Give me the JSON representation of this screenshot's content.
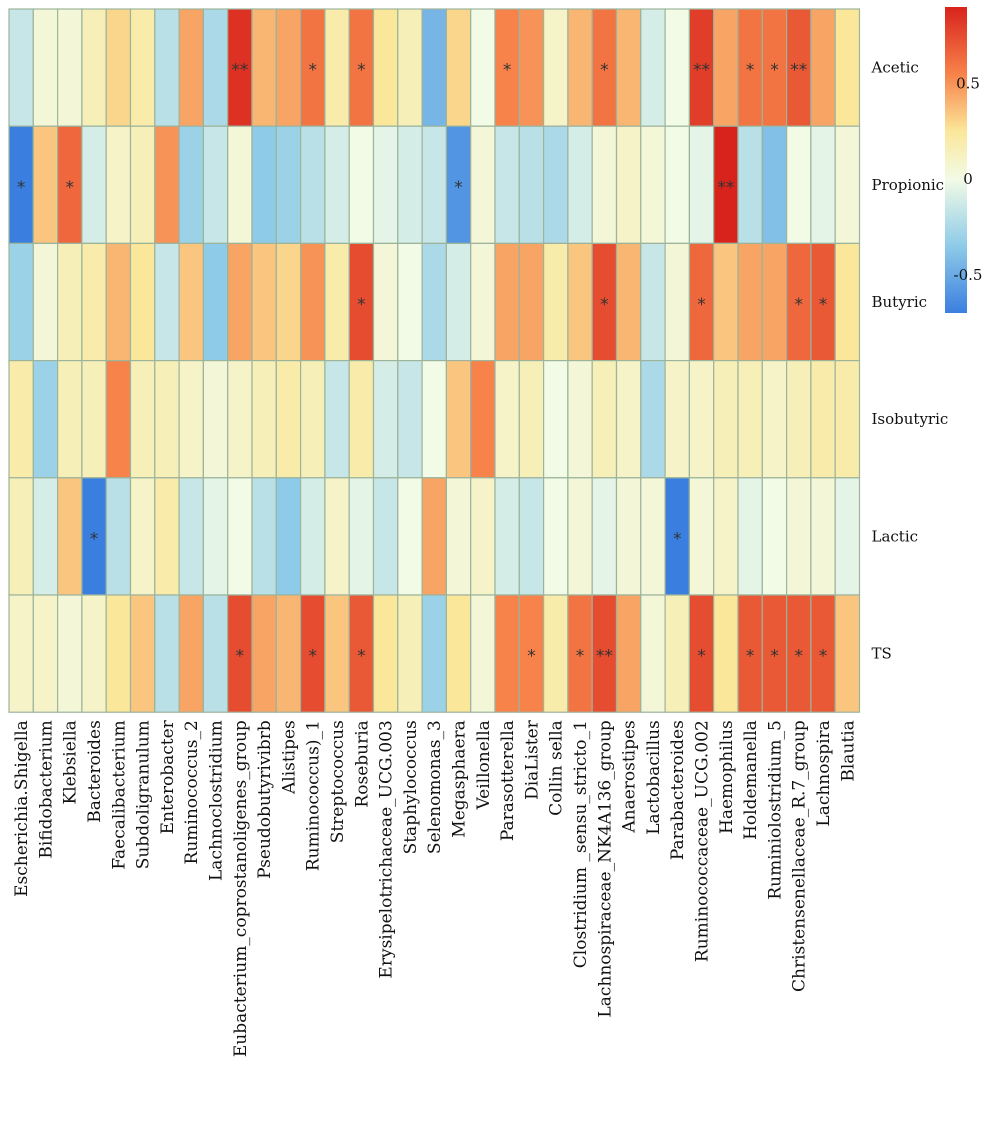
{
  "chart_data": {
    "type": "heatmap",
    "rows": [
      "Acetic",
      "Propionic",
      "Butyric",
      "Isobutyric",
      "Lactic",
      "TS"
    ],
    "columns": [
      "Escherichia.Shigella",
      "Bifidobacterium",
      "Klebsiella",
      "Bacteroides",
      "Faecalibacterium",
      "Subdoligranulum",
      "Enterobacter",
      "Ruminococcus_2",
      "Lachnoclostridium",
      "Eubacterium_coprostanoligenes_group",
      "Pseudobutyrivibrb",
      "Alistipes",
      "Ruminococcus)_1",
      "Streptococcus",
      "Roseburia",
      "Erysipelotrichaceae_UCG.003",
      "Staphylococcus",
      "Selenomonas_3",
      "Megasphaera",
      "Veillonella",
      "Parasotterella",
      "DiaLister",
      "Collin sella",
      "Clostridium _sensu_stricto_1",
      "Lachnospiraceae_NK4A136_group",
      "Anaerostipes",
      "Lactobacillus",
      "Parabacteroides",
      "Ruminococcaceae_UCG.002",
      "Haemophilus",
      "Holdemanella",
      "Ruminiolostridium_5",
      "Christensenellaceae_R.7_group",
      "Lachnospira",
      "Blautia"
    ],
    "values": [
      [
        -0.15,
        0.05,
        0.05,
        0.15,
        0.3,
        0.2,
        -0.2,
        0.45,
        -0.25,
        0.85,
        0.4,
        0.45,
        0.6,
        0.2,
        0.6,
        0.25,
        0.15,
        -0.45,
        0.3,
        0.0,
        0.55,
        0.5,
        0.1,
        0.4,
        0.6,
        0.4,
        -0.1,
        0.0,
        0.8,
        0.45,
        0.6,
        0.6,
        0.7,
        0.45,
        0.25
      ],
      [
        -0.7,
        0.35,
        0.65,
        -0.1,
        0.1,
        0.15,
        0.5,
        -0.3,
        -0.15,
        0.05,
        -0.35,
        -0.3,
        -0.2,
        -0.1,
        0.0,
        -0.05,
        -0.1,
        -0.15,
        -0.6,
        0.05,
        -0.15,
        -0.2,
        -0.25,
        -0.1,
        0.05,
        0.1,
        0.05,
        0.0,
        -0.05,
        0.9,
        -0.2,
        -0.4,
        0.0,
        -0.05,
        0.05
      ],
      [
        -0.3,
        0.05,
        0.15,
        0.2,
        0.4,
        0.25,
        -0.15,
        0.35,
        -0.35,
        0.45,
        0.35,
        0.3,
        0.5,
        0.2,
        0.75,
        0.05,
        0.0,
        -0.25,
        -0.1,
        0.05,
        0.45,
        0.45,
        0.2,
        0.35,
        0.75,
        0.4,
        -0.15,
        0.05,
        0.65,
        0.35,
        0.45,
        0.45,
        0.65,
        0.7,
        0.25
      ],
      [
        0.2,
        -0.3,
        0.15,
        0.15,
        0.55,
        0.15,
        0.15,
        0.1,
        0.05,
        0.1,
        0.15,
        0.2,
        0.15,
        -0.15,
        0.2,
        -0.1,
        -0.15,
        0.0,
        0.35,
        0.55,
        0.1,
        0.15,
        0.0,
        0.05,
        0.15,
        0.1,
        -0.25,
        0.1,
        0.1,
        0.15,
        0.15,
        0.1,
        0.15,
        0.2,
        0.2
      ],
      [
        0.15,
        -0.1,
        0.35,
        -0.75,
        -0.2,
        0.1,
        0.2,
        -0.15,
        -0.05,
        0.0,
        -0.2,
        -0.35,
        -0.1,
        0.1,
        -0.05,
        -0.15,
        0.0,
        0.45,
        0.05,
        0.1,
        -0.1,
        -0.15,
        0.0,
        0.05,
        -0.05,
        0.05,
        0.05,
        -0.75,
        0.05,
        0.1,
        -0.05,
        0.0,
        0.05,
        0.05,
        -0.05
      ],
      [
        0.1,
        0.1,
        0.05,
        0.1,
        0.25,
        0.35,
        -0.2,
        0.45,
        -0.2,
        0.75,
        0.45,
        0.4,
        0.75,
        0.35,
        0.7,
        0.25,
        0.15,
        -0.3,
        0.25,
        0.05,
        0.55,
        0.55,
        0.2,
        0.6,
        0.75,
        0.45,
        0.05,
        0.15,
        0.75,
        0.25,
        0.7,
        0.7,
        0.7,
        0.7,
        0.35
      ]
    ],
    "significance": [
      [
        "",
        "",
        "",
        "",
        "",
        "",
        "",
        "",
        "",
        "**",
        "",
        "",
        "*",
        "",
        "*",
        "",
        "",
        "",
        "",
        "",
        "*",
        "",
        "",
        "",
        "*",
        "",
        "",
        "",
        "**",
        "",
        "*",
        "*",
        "**",
        "",
        ""
      ],
      [
        "*",
        "",
        "*",
        "",
        "",
        "",
        "",
        "",
        "",
        "",
        "",
        "",
        "",
        "",
        "",
        "",
        "",
        "",
        "*",
        "",
        "",
        "",
        "",
        "",
        "",
        "",
        "",
        "",
        "",
        "**",
        "",
        "",
        "",
        "",
        ""
      ],
      [
        "",
        "",
        "",
        "",
        "",
        "",
        "",
        "",
        "",
        "",
        "",
        "",
        "",
        "",
        "*",
        "",
        "",
        "",
        "",
        "",
        "",
        "",
        "",
        "",
        "*",
        "",
        "",
        "",
        "*",
        "",
        "",
        "",
        "*",
        "*",
        ""
      ],
      [
        "",
        "",
        "",
        "",
        "",
        "",
        "",
        "",
        "",
        "",
        "",
        "",
        "",
        "",
        "",
        "",
        "",
        "",
        "",
        "",
        "",
        "",
        "",
        "",
        "",
        "",
        "",
        "",
        "",
        "",
        "",
        "",
        "",
        "",
        ""
      ],
      [
        "",
        "",
        "",
        "*",
        "",
        "",
        "",
        "",
        "",
        "",
        "",
        "",
        "",
        "",
        "",
        "",
        "",
        "",
        "",
        "",
        "",
        "",
        "",
        "",
        "",
        "",
        "",
        "*",
        "",
        "",
        "",
        "",
        "",
        "",
        ""
      ],
      [
        "",
        "",
        "",
        "",
        "",
        "",
        "",
        "",
        "",
        "*",
        "",
        "",
        "*",
        "",
        "*",
        "",
        "",
        "",
        "",
        "",
        "",
        "*",
        "",
        "*",
        "**",
        "",
        "",
        "",
        "*",
        "",
        "*",
        "*",
        "*",
        "*",
        ""
      ]
    ],
    "color_scale": {
      "min": -0.7,
      "max": 0.9,
      "stops": [
        {
          "value": -0.7,
          "color": "#3a7fe0"
        },
        {
          "value": -0.35,
          "color": "#8ecbe8"
        },
        {
          "value": 0.0,
          "color": "#f2fbe6"
        },
        {
          "value": 0.25,
          "color": "#fbe79a"
        },
        {
          "value": 0.55,
          "color": "#f7824a"
        },
        {
          "value": 0.9,
          "color": "#d8231c"
        }
      ],
      "ticks": [
        0.5,
        0,
        -0.5
      ],
      "tick_labels": [
        "0.5",
        "0",
        "-0.5"
      ]
    },
    "grid_color": "#9cb39c",
    "legend": "right"
  }
}
